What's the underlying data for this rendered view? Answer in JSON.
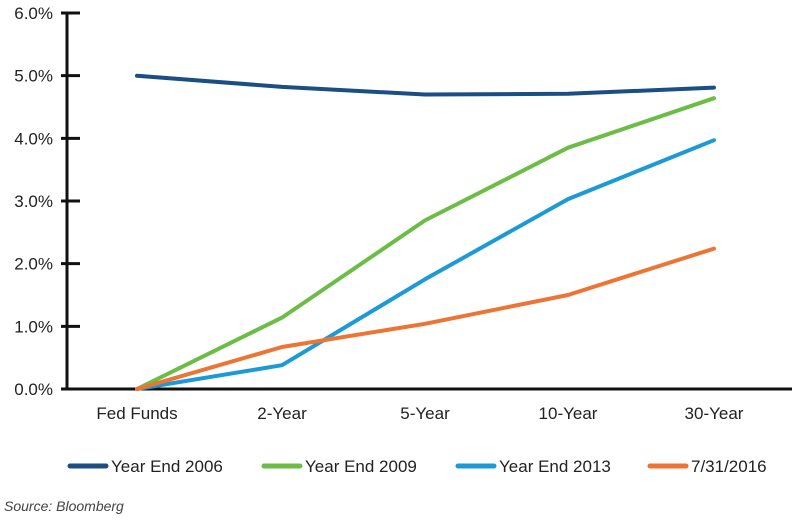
{
  "chart_data": {
    "type": "line",
    "categories": [
      "Fed Funds",
      "2-Year",
      "5-Year",
      "10-Year",
      "30-Year"
    ],
    "yticks": [
      "0.0%",
      "1.0%",
      "2.0%",
      "3.0%",
      "4.0%",
      "5.0%",
      "6.0%"
    ],
    "ylim": [
      0,
      6
    ],
    "grid": false,
    "legend_position": "bottom",
    "series": [
      {
        "name": "Year End 2006",
        "color": "#1a4e85",
        "values": [
          5.0,
          4.82,
          4.7,
          4.71,
          4.81
        ]
      },
      {
        "name": "Year End 2009",
        "color": "#6bbd45",
        "values": [
          0.0,
          1.14,
          2.69,
          3.85,
          4.64
        ]
      },
      {
        "name": "Year End 2013",
        "color": "#1c9ad6",
        "values": [
          0.0,
          0.38,
          1.75,
          3.03,
          3.97
        ]
      },
      {
        "name": "7/31/2016",
        "color": "#ed7432",
        "values": [
          0.0,
          0.67,
          1.04,
          1.5,
          2.24
        ]
      }
    ],
    "source": "Source: Bloomberg"
  }
}
